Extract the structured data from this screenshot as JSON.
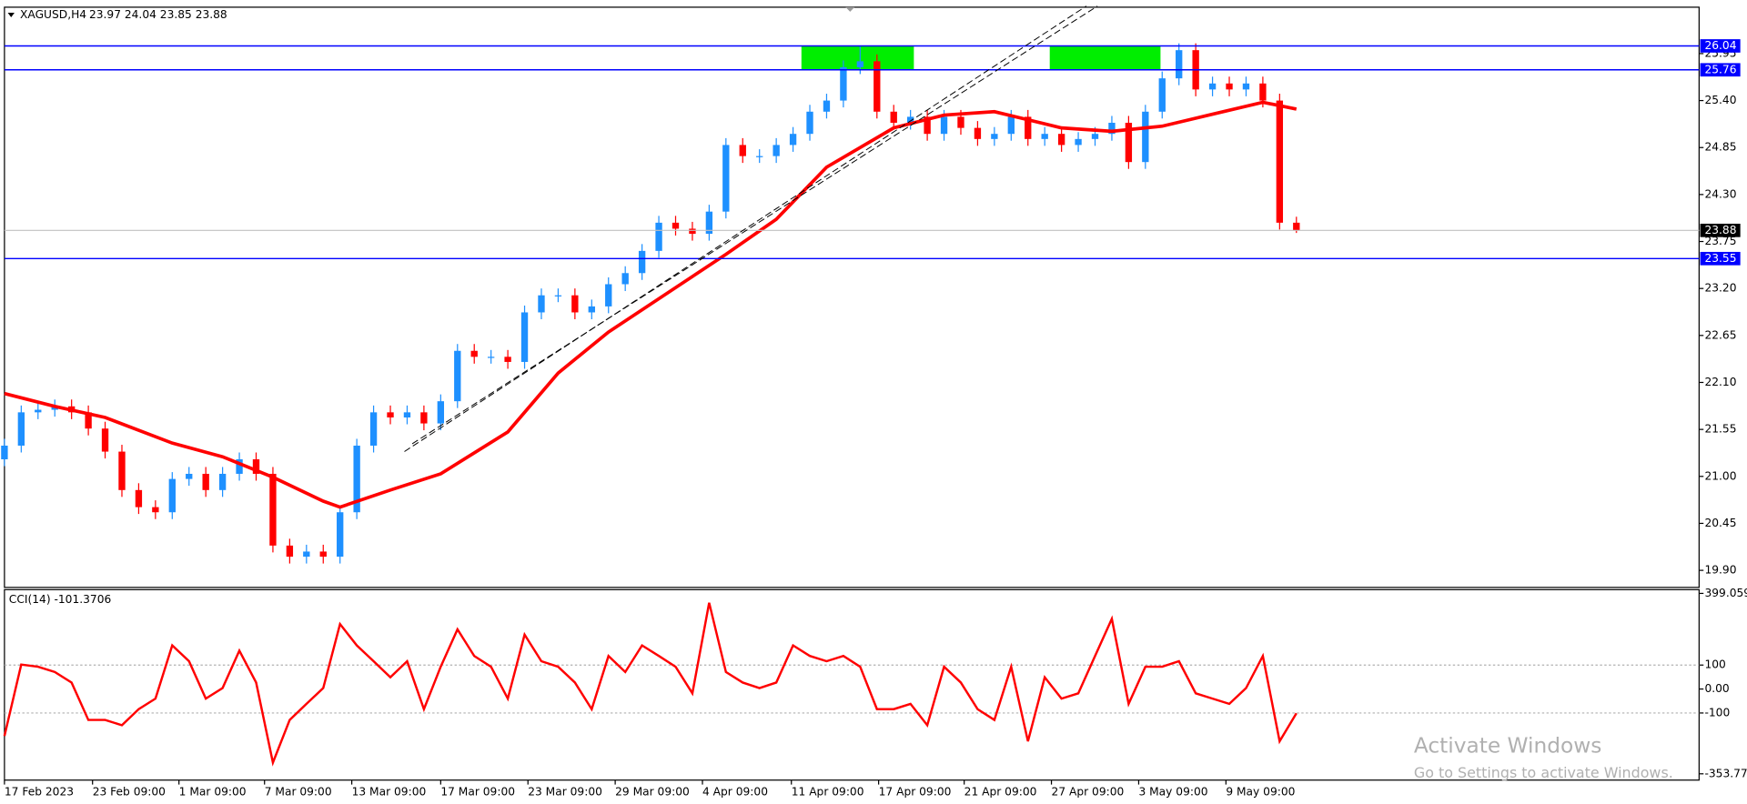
{
  "chart_data": [
    {
      "type": "candlestick",
      "title": "XAGUSD,H4",
      "ohlc_label": "23.97 24.04 23.85 23.88",
      "x": [
        0,
        1,
        2,
        3,
        4,
        5,
        6,
        7,
        8,
        9,
        10,
        11,
        12,
        13,
        14,
        15,
        16,
        17,
        18,
        19,
        20,
        21,
        22,
        23,
        24,
        25,
        26,
        27,
        28,
        29,
        30,
        31,
        32,
        33,
        34,
        35,
        36,
        37,
        38,
        39,
        40,
        41,
        42,
        43,
        44,
        45,
        46,
        47,
        48,
        49,
        50,
        51,
        52,
        53,
        54,
        55,
        56,
        57,
        58,
        59,
        60,
        61,
        62,
        63,
        64,
        65,
        66,
        67,
        68,
        69,
        70,
        71,
        72,
        73,
        74,
        75,
        76,
        77
      ],
      "open": [
        21.2,
        21.36,
        21.75,
        21.78,
        21.82,
        21.75,
        21.56,
        21.29,
        20.84,
        20.64,
        20.58,
        20.97,
        21.03,
        20.84,
        21.03,
        21.2,
        21.03,
        20.19,
        20.06,
        20.12,
        20.06,
        20.58,
        21.36,
        21.75,
        21.69,
        21.75,
        21.62,
        21.88,
        22.47,
        22.4,
        22.4,
        22.34,
        22.92,
        23.12,
        23.12,
        22.92,
        22.99,
        23.25,
        23.38,
        23.64,
        23.97,
        23.9,
        23.84,
        24.1,
        24.88,
        24.75,
        24.75,
        24.88,
        25.01,
        25.27,
        25.4,
        25.79,
        25.86,
        25.27,
        25.14,
        25.21,
        25.01,
        25.21,
        25.08,
        24.95,
        25.01,
        25.21,
        24.95,
        25.01,
        24.88,
        24.95,
        25.01,
        25.14,
        24.68,
        25.27,
        25.66,
        25.99,
        25.53,
        25.6,
        25.53,
        25.6,
        25.4,
        23.97
      ],
      "high": [
        21.44,
        21.83,
        21.86,
        21.9,
        21.9,
        21.83,
        21.64,
        21.37,
        20.92,
        20.72,
        21.05,
        21.11,
        21.11,
        21.11,
        21.28,
        21.28,
        21.11,
        20.27,
        20.2,
        20.2,
        20.66,
        21.44,
        21.83,
        21.83,
        21.83,
        21.83,
        21.96,
        22.55,
        22.55,
        22.48,
        22.48,
        23.0,
        23.2,
        23.2,
        23.2,
        23.07,
        23.33,
        23.46,
        23.72,
        24.05,
        24.05,
        23.98,
        24.18,
        24.96,
        24.96,
        24.83,
        24.96,
        25.09,
        25.35,
        25.48,
        25.87,
        26.04,
        25.94,
        25.35,
        25.29,
        25.29,
        25.29,
        25.29,
        25.16,
        25.09,
        25.29,
        25.29,
        25.09,
        25.09,
        25.03,
        25.09,
        25.22,
        25.22,
        25.35,
        25.74,
        26.07,
        26.07,
        25.68,
        25.68,
        25.68,
        25.68,
        25.48,
        24.04
      ],
      "low": [
        21.12,
        21.28,
        21.67,
        21.7,
        21.67,
        21.48,
        21.21,
        20.76,
        20.56,
        20.5,
        20.5,
        20.89,
        20.76,
        20.76,
        20.95,
        20.95,
        20.11,
        19.98,
        19.98,
        19.98,
        19.98,
        20.5,
        21.28,
        21.61,
        21.61,
        21.54,
        21.54,
        21.8,
        22.32,
        22.32,
        22.26,
        22.26,
        22.84,
        23.04,
        22.84,
        22.84,
        22.91,
        23.17,
        23.3,
        23.56,
        23.82,
        23.76,
        23.76,
        24.02,
        24.67,
        24.67,
        24.67,
        24.8,
        24.93,
        25.19,
        25.32,
        25.71,
        25.19,
        25.06,
        25.06,
        24.93,
        24.93,
        25.0,
        24.87,
        24.87,
        24.93,
        24.87,
        24.87,
        24.8,
        24.8,
        24.87,
        24.93,
        24.6,
        24.6,
        25.19,
        25.58,
        25.45,
        25.45,
        25.45,
        25.45,
        25.32,
        23.89,
        23.85
      ],
      "close": [
        21.36,
        21.75,
        21.78,
        21.82,
        21.75,
        21.56,
        21.29,
        20.84,
        20.64,
        20.58,
        20.97,
        21.03,
        20.84,
        21.03,
        21.2,
        21.03,
        20.19,
        20.06,
        20.12,
        20.06,
        20.58,
        21.36,
        21.75,
        21.69,
        21.75,
        21.62,
        21.88,
        22.47,
        22.4,
        22.4,
        22.34,
        22.92,
        23.12,
        23.12,
        22.92,
        22.99,
        23.25,
        23.38,
        23.64,
        23.97,
        23.9,
        23.84,
        24.1,
        24.88,
        24.75,
        24.75,
        24.88,
        25.01,
        25.27,
        25.4,
        25.79,
        25.86,
        25.27,
        25.14,
        25.21,
        25.01,
        25.21,
        25.08,
        24.95,
        25.01,
        25.21,
        24.95,
        25.01,
        24.88,
        24.95,
        25.01,
        25.14,
        24.68,
        25.27,
        25.66,
        25.99,
        25.53,
        25.6,
        25.53,
        25.6,
        25.4,
        23.97,
        23.88
      ],
      "up_color": "#1e90ff",
      "down_color": "#ff0000",
      "xlim": [
        0,
        101
      ],
      "xticks": [
        {
          "value": 0,
          "label": "17 Feb 2023"
        },
        {
          "value": 5.25,
          "label": "23 Feb 09:00"
        },
        {
          "value": 10.4,
          "label": "1 Mar 09:00"
        },
        {
          "value": 15.5,
          "label": "7 Mar 09:00"
        },
        {
          "value": 20.7,
          "label": "13 Mar 09:00"
        },
        {
          "value": 26,
          "label": "17 Mar 09:00"
        },
        {
          "value": 31.2,
          "label": "23 Mar 09:00"
        },
        {
          "value": 36.4,
          "label": "29 Mar 09:00"
        },
        {
          "value": 41.6,
          "label": "4 Apr 09:00"
        },
        {
          "value": 46.9,
          "label": "11 Apr 09:00"
        },
        {
          "value": 52.1,
          "label": "17 Apr 09:00"
        },
        {
          "value": 57.2,
          "label": "21 Apr 09:00"
        },
        {
          "value": 62.4,
          "label": "27 Apr 09:00"
        },
        {
          "value": 67.6,
          "label": "3 May 09:00"
        },
        {
          "value": 72.8,
          "label": "9 May 09:00"
        }
      ],
      "ylim": [
        19.7,
        26.48
      ],
      "yticks": [
        {
          "value": 19.9,
          "label": "19.90"
        },
        20.45,
        {
          "value": 21,
          "label": "21.00"
        },
        21.55,
        {
          "value": 22.1,
          "label": "22.10"
        },
        22.65,
        {
          "value": 23.2,
          "label": "23.20"
        },
        23.75,
        {
          "value": 24.3,
          "label": "24.30"
        },
        24.85,
        {
          "value": 25.4,
          "label": "25.40"
        },
        25.95
      ],
      "levels": [
        26.04,
        25.76,
        23.55
      ],
      "level_color": "#0000ff",
      "last_price": 23.88,
      "ma": {
        "x": [
          0,
          3,
          6,
          10,
          13,
          16,
          19,
          20,
          23,
          26,
          30,
          33,
          36,
          40,
          43,
          46,
          49,
          53,
          56,
          59,
          63,
          66,
          69,
          72,
          75,
          77
        ],
        "values": [
          21.97,
          21.82,
          21.69,
          21.39,
          21.23,
          20.99,
          20.71,
          20.64,
          20.84,
          21.03,
          21.52,
          22.21,
          22.69,
          23.21,
          23.6,
          24.01,
          24.62,
          25.08,
          25.23,
          25.27,
          25.08,
          25.04,
          25.1,
          25.24,
          25.38,
          25.3
        ],
        "color": "#ff0000"
      },
      "zones": [
        {
          "x": [
            47.5,
            54.2
          ],
          "y": [
            25.76,
            26.04
          ]
        },
        {
          "x": [
            62.3,
            68.9
          ],
          "y": [
            25.76,
            26.04
          ]
        }
      ],
      "zone_color": "#00ee00"
    },
    {
      "type": "line",
      "title": "CCI(14) -101.3706",
      "x": [
        0,
        1,
        2,
        3,
        4,
        5,
        6,
        7,
        8,
        9,
        10,
        11,
        12,
        13,
        14,
        15,
        16,
        17,
        18,
        19,
        20,
        21,
        22,
        23,
        24,
        25,
        26,
        27,
        28,
        29,
        30,
        31,
        32,
        33,
        34,
        35,
        36,
        37,
        38,
        39,
        40,
        41,
        42,
        43,
        44,
        45,
        46,
        47,
        48,
        49,
        50,
        51,
        52,
        53,
        54,
        55,
        56,
        57,
        58,
        59,
        60,
        61,
        62,
        63,
        64,
        65,
        66,
        67,
        68,
        69,
        70,
        71,
        72,
        73,
        74,
        75,
        76,
        77
      ],
      "values": [
        -196,
        102,
        93,
        71,
        27,
        -129,
        -129,
        -151,
        -84,
        -40,
        182,
        116,
        -40,
        4,
        160,
        27,
        -307,
        -129,
        -62,
        4,
        271,
        182,
        116,
        49,
        116,
        -84,
        93,
        249,
        138,
        93,
        -40,
        227,
        116,
        93,
        27,
        -84,
        138,
        71,
        182,
        138,
        93,
        -18,
        360,
        71,
        27,
        4,
        27,
        182,
        138,
        116,
        138,
        93,
        -84,
        -84,
        -62,
        -151,
        93,
        27,
        -84,
        -129,
        93,
        -218,
        49,
        -40,
        -18,
        138,
        293,
        -62,
        93,
        93,
        116,
        -18,
        -40,
        -62,
        4,
        138,
        -218,
        -101.3706
      ],
      "color": "#ff0000",
      "xlim": [
        0,
        101
      ],
      "ylim": [
        -380,
        410
      ],
      "yticks": [
        399.059,
        100,
        {
          "value": 0,
          "label": "0.00"
        },
        -100,
        -353.774
      ],
      "levels": [
        100,
        -100
      ]
    }
  ],
  "watermark": {
    "title": "Activate Windows",
    "subtitle": "Go to Settings to activate Windows."
  }
}
